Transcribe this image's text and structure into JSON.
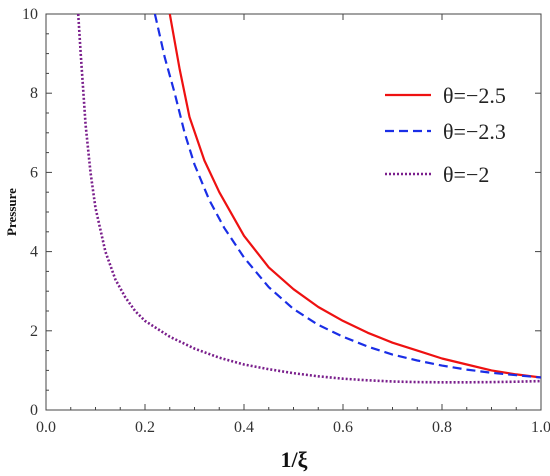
{
  "chart_data": {
    "type": "line",
    "xlabel": "1/ξ",
    "ylabel": "Pressure",
    "xlim": [
      0,
      1
    ],
    "ylim": [
      0,
      10
    ],
    "xticks": [
      "0.0",
      "0.2",
      "0.4",
      "0.6",
      "0.8",
      "1.0"
    ],
    "yticks": [
      "0",
      "2",
      "4",
      "6",
      "8",
      "10"
    ],
    "legend_position": "top-right",
    "series": [
      {
        "name": "θ=−2.5",
        "color": "#ee1111",
        "style": "solid",
        "x": [
          0.25,
          0.27,
          0.29,
          0.32,
          0.35,
          0.4,
          0.45,
          0.5,
          0.55,
          0.6,
          0.65,
          0.7,
          0.75,
          0.8,
          0.85,
          0.9,
          0.95,
          1.0
        ],
        "y": [
          10.0,
          8.6,
          7.4,
          6.3,
          5.5,
          4.4,
          3.6,
          3.05,
          2.6,
          2.25,
          1.95,
          1.7,
          1.5,
          1.3,
          1.15,
          1.0,
          0.9,
          0.82
        ]
      },
      {
        "name": "θ=−2.3",
        "color": "#1a2ee6",
        "style": "dashed",
        "x": [
          0.22,
          0.24,
          0.26,
          0.28,
          0.3,
          0.33,
          0.36,
          0.4,
          0.45,
          0.5,
          0.55,
          0.6,
          0.65,
          0.7,
          0.75,
          0.8,
          0.85,
          0.9,
          0.95,
          1.0
        ],
        "y": [
          10.0,
          8.9,
          8.0,
          7.0,
          6.2,
          5.3,
          4.6,
          3.85,
          3.1,
          2.55,
          2.15,
          1.85,
          1.6,
          1.4,
          1.25,
          1.12,
          1.02,
          0.94,
          0.88,
          0.82
        ]
      },
      {
        "name": "θ=−2",
        "color": "#7a1f8c",
        "style": "dotted",
        "x": [
          0.065,
          0.07,
          0.08,
          0.09,
          0.1,
          0.12,
          0.14,
          0.16,
          0.18,
          0.2,
          0.25,
          0.3,
          0.35,
          0.4,
          0.45,
          0.5,
          0.55,
          0.6,
          0.65,
          0.7,
          0.75,
          0.8,
          0.85,
          0.9,
          0.95,
          1.0
        ],
        "y": [
          10.0,
          9.0,
          7.2,
          6.0,
          5.1,
          4.0,
          3.3,
          2.85,
          2.5,
          2.25,
          1.85,
          1.55,
          1.32,
          1.15,
          1.03,
          0.93,
          0.85,
          0.79,
          0.75,
          0.72,
          0.705,
          0.7,
          0.7,
          0.705,
          0.715,
          0.73
        ]
      }
    ]
  }
}
